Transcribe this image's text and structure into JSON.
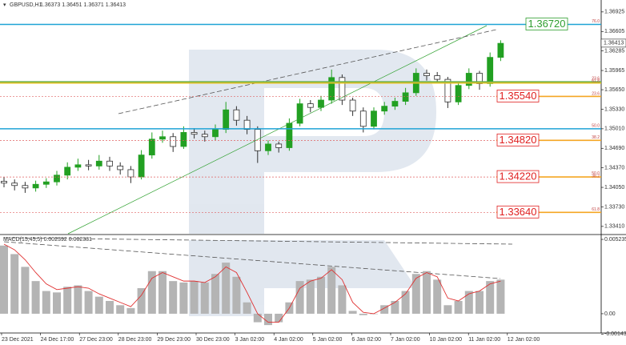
{
  "chart_data": [
    {
      "type": "candlestick",
      "title": "GBPUSD,H1",
      "subtitle": "1.36373 1.36451 1.36371 1.36413",
      "up_color": "#22a022",
      "down_color": "#303030",
      "open": [
        1.3415,
        1.3412,
        1.3408,
        1.3404,
        1.341,
        1.3414,
        1.3425,
        1.3438,
        1.3442,
        1.344,
        1.3448,
        1.344,
        1.3434,
        1.3422,
        1.3458,
        1.3484,
        1.3488,
        1.3472,
        1.3495,
        1.3492,
        1.3488,
        1.35,
        1.3532,
        1.3515,
        1.35,
        1.3465,
        1.3476,
        1.347,
        1.351,
        1.3542,
        1.3536,
        1.3548,
        1.3585,
        1.3548,
        1.353,
        1.3505,
        1.353,
        1.3538,
        1.3546,
        1.356,
        1.3592,
        1.3588,
        1.3582,
        1.3545,
        1.3572,
        1.3592,
        1.3575,
        1.3618
      ],
      "high": [
        1.3422,
        1.3418,
        1.3414,
        1.3416,
        1.342,
        1.3432,
        1.3446,
        1.3452,
        1.345,
        1.3458,
        1.3455,
        1.3446,
        1.344,
        1.3466,
        1.3495,
        1.3498,
        1.3494,
        1.3505,
        1.3502,
        1.3498,
        1.3508,
        1.3545,
        1.3538,
        1.3522,
        1.3505,
        1.3482,
        1.348,
        1.3518,
        1.355,
        1.3548,
        1.3555,
        1.3598,
        1.359,
        1.3552,
        1.3536,
        1.3536,
        1.3545,
        1.3552,
        1.3568,
        1.36,
        1.3598,
        1.3594,
        1.3586,
        1.3578,
        1.36,
        1.3596,
        1.3626,
        1.3646
      ],
      "low": [
        1.3405,
        1.34,
        1.3396,
        1.3398,
        1.3404,
        1.3408,
        1.3418,
        1.3432,
        1.3433,
        1.3434,
        1.3432,
        1.3426,
        1.3412,
        1.3418,
        1.3452,
        1.3478,
        1.3463,
        1.3468,
        1.3485,
        1.348,
        1.3482,
        1.3494,
        1.3506,
        1.3492,
        1.3445,
        1.3458,
        1.3462,
        1.3465,
        1.3505,
        1.3528,
        1.353,
        1.3542,
        1.354,
        1.3522,
        1.3495,
        1.35,
        1.3524,
        1.3532,
        1.354,
        1.3555,
        1.358,
        1.3575,
        1.3535,
        1.354,
        1.3566,
        1.3565,
        1.357,
        1.3612
      ],
      "close": [
        1.3412,
        1.3408,
        1.3404,
        1.341,
        1.3414,
        1.3425,
        1.3438,
        1.3442,
        1.344,
        1.3448,
        1.344,
        1.3434,
        1.3422,
        1.3458,
        1.3484,
        1.3488,
        1.3472,
        1.3495,
        1.3492,
        1.3488,
        1.35,
        1.3532,
        1.3515,
        1.35,
        1.3465,
        1.3476,
        1.347,
        1.351,
        1.3542,
        1.3536,
        1.3548,
        1.3585,
        1.3548,
        1.353,
        1.3505,
        1.353,
        1.3538,
        1.3546,
        1.356,
        1.3592,
        1.3588,
        1.3582,
        1.3545,
        1.3572,
        1.3592,
        1.3575,
        1.3618,
        1.3641
      ],
      "ylim": [
        1.3329,
        1.3712
      ],
      "yticks": [
        1.36925,
        1.36605,
        1.36285,
        1.35965,
        {
          "value": 1.3565,
          "label": "1.35650"
        },
        {
          "value": 1.3533,
          "label": "1.35330"
        },
        {
          "value": 1.3501,
          "label": "1.35010"
        },
        {
          "value": 1.3469,
          "label": "1.34690"
        },
        {
          "value": 1.3437,
          "label": "1.34370"
        },
        {
          "value": 1.3405,
          "label": "1.34050"
        },
        {
          "value": 1.3373,
          "label": "1.33730"
        },
        {
          "value": 1.3341,
          "label": "1.33410"
        }
      ],
      "last": {
        "value": 1.36413,
        "label": "1.36413"
      },
      "levels": [
        {
          "value": 1.3672,
          "color": "#1fa3d6",
          "style": "solid",
          "label": "1.36720",
          "label_color": "#2e9e2e"
        },
        {
          "value": 1.3578,
          "color": "#6ab04c",
          "style": "solid"
        },
        {
          "value": 1.3576,
          "color": "#e0c020",
          "style": "solid"
        },
        {
          "value": 1.3501,
          "color": "#1fa3d6",
          "style": "solid"
        },
        {
          "value": 1.3554,
          "color": "#e06060",
          "style": "dotted",
          "label": "1.35540",
          "label_color": "#e02020"
        },
        {
          "value": 1.3482,
          "color": "#e06060",
          "style": "dotted",
          "label": "1.34820",
          "label_color": "#e02020"
        },
        {
          "value": 1.3422,
          "color": "#e06060",
          "style": "dotted",
          "label": "1.34220",
          "label_color": "#e02020"
        },
        {
          "value": 1.3364,
          "color": "#e06060",
          "style": "dotted",
          "label": "1.33640",
          "label_color": "#e02020"
        }
      ],
      "fib_labels": [
        {
          "value": 1.3677,
          "label": "76.0"
        },
        {
          "value": 1.3583,
          "label": "23.6"
        },
        {
          "value": 1.3579,
          "label": "61.8"
        },
        {
          "value": 1.3558,
          "label": "23.6"
        },
        {
          "value": 1.3506,
          "label": "50.0"
        },
        {
          "value": 1.3487,
          "label": "38.2"
        },
        {
          "value": 1.3428,
          "label": "50.0"
        },
        {
          "value": 1.3423,
          "label": "38.2"
        },
        {
          "value": 1.3369,
          "label": "61.8"
        }
      ],
      "dates": [
        "23 Dec 2021",
        "24 Dec 17:00",
        "27 Dec 23:00",
        "28 Dec 23:00",
        "29 Dec 23:00",
        "30 Dec 23:00",
        "3 Jan 02:00",
        "4 Jan 02:00",
        "5 Jan 02:00",
        "6 Jan 02:00",
        "7 Jan 02:00",
        "10 Jan 02:00",
        "11 Jan 02:00",
        "12 Jan 02:00"
      ]
    },
    {
      "type": "bar",
      "title": "MACD(15,45,5) 0.002392 0.002331",
      "color": "#b4b4b4",
      "signal_color": "#e03030",
      "values": [
        0.0048,
        0.0042,
        0.0033,
        0.0023,
        0.0016,
        0.0015,
        0.0019,
        0.002,
        0.0016,
        0.0012,
        0.0009,
        0.0006,
        0.0004,
        0.0018,
        0.003,
        0.003,
        0.0023,
        0.0022,
        0.0023,
        0.0022,
        0.0028,
        0.0036,
        0.0026,
        0.0008,
        -0.0006,
        -0.0008,
        -0.0006,
        0.0008,
        0.0023,
        0.0024,
        0.0026,
        0.0033,
        0.002,
        0.0002,
        -0.0001,
        0.0,
        0.0006,
        0.0009,
        0.0016,
        0.0028,
        0.003,
        0.0024,
        0.0006,
        0.0009,
        0.0016,
        0.0016,
        0.0023,
        0.0024
      ],
      "signal": [
        0.0049,
        0.0045,
        0.0038,
        0.0029,
        0.0021,
        0.0017,
        0.0018,
        0.0019,
        0.0018,
        0.0014,
        0.0011,
        0.0008,
        0.0005,
        0.0013,
        0.0025,
        0.0029,
        0.0026,
        0.0023,
        0.0023,
        0.0022,
        0.0026,
        0.0033,
        0.0029,
        0.0015,
        0.0,
        -0.0006,
        -0.0006,
        0.0004,
        0.0018,
        0.0023,
        0.0025,
        0.0031,
        0.0024,
        0.0008,
        0.0001,
        0.0,
        0.0004,
        0.0008,
        0.0014,
        0.0025,
        0.0029,
        0.0026,
        0.0011,
        0.0009,
        0.0014,
        0.0016,
        0.0021,
        0.0023
      ],
      "ylim": [
        -0.0013,
        0.00552
      ],
      "yticks": [
        0.005235,
        {
          "value": 0,
          "label": "0.00"
        },
        -0.001434
      ]
    }
  ]
}
